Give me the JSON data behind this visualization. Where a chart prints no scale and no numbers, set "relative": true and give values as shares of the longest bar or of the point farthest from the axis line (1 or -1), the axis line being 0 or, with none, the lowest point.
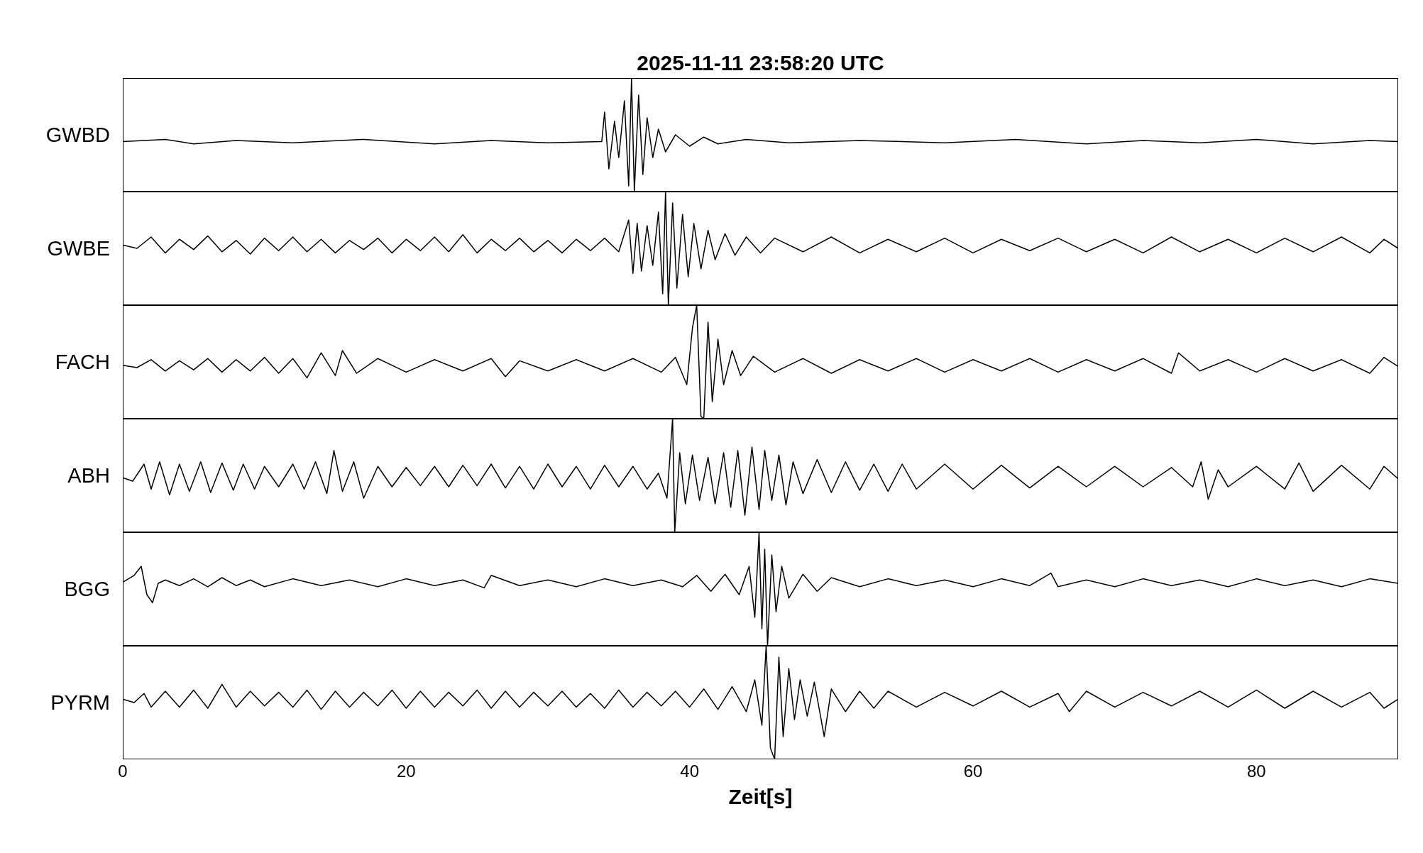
{
  "chart_data": [
    {
      "type": "line",
      "relative": true,
      "title": "2025-11-11  23:58:20 UTC",
      "ylabel": "GWBD",
      "color": "#000000",
      "xlim": [
        0,
        90
      ],
      "xticks": [
        0,
        20,
        40,
        60,
        80
      ],
      "tick_labels": false,
      "x": [
        0,
        3,
        5,
        8,
        12,
        17,
        22,
        26,
        30,
        33.8,
        34,
        34.3,
        34.7,
        35,
        35.4,
        35.7,
        35.9,
        36.1,
        36.4,
        36.7,
        37,
        37.4,
        37.8,
        38.3,
        39,
        40,
        41,
        42,
        44,
        47,
        52,
        58,
        63,
        68,
        72,
        76,
        80,
        84,
        88,
        90
      ],
      "values": [
        0.44,
        0.46,
        0.42,
        0.45,
        0.43,
        0.46,
        0.42,
        0.45,
        0.43,
        0.44,
        0.7,
        0.2,
        0.62,
        0.3,
        0.8,
        0.05,
        1,
        0,
        0.85,
        0.15,
        0.65,
        0.3,
        0.55,
        0.35,
        0.5,
        0.4,
        0.48,
        0.42,
        0.46,
        0.43,
        0.45,
        0.43,
        0.46,
        0.42,
        0.45,
        0.43,
        0.46,
        0.42,
        0.45,
        0.44
      ]
    },
    {
      "type": "line",
      "relative": true,
      "ylabel": "GWBE",
      "color": "#000000",
      "xlim": [
        0,
        90
      ],
      "xticks": [
        0,
        20,
        40,
        60,
        80
      ],
      "tick_labels": false,
      "x": [
        0,
        1,
        2,
        3,
        4,
        5,
        6,
        7,
        8,
        9,
        10,
        11,
        12,
        13,
        14,
        15,
        16,
        17,
        18,
        19,
        20,
        21,
        22,
        23,
        24,
        25,
        26,
        27,
        28,
        29,
        30,
        31,
        32,
        33,
        34,
        35,
        35.7,
        36,
        36.3,
        36.6,
        37,
        37.4,
        37.8,
        38.1,
        38.3,
        38.5,
        38.8,
        39.1,
        39.5,
        39.9,
        40.3,
        40.8,
        41.3,
        41.8,
        42.5,
        43.2,
        44,
        45,
        46,
        48,
        50,
        52,
        54,
        56,
        58,
        60,
        62,
        64,
        66,
        68,
        70,
        72,
        74,
        76,
        78,
        80,
        82,
        84,
        86,
        88,
        89,
        90
      ],
      "values": [
        0.53,
        0.5,
        0.6,
        0.46,
        0.58,
        0.49,
        0.61,
        0.47,
        0.57,
        0.45,
        0.59,
        0.48,
        0.6,
        0.47,
        0.58,
        0.46,
        0.57,
        0.49,
        0.59,
        0.46,
        0.58,
        0.48,
        0.6,
        0.47,
        0.62,
        0.46,
        0.58,
        0.48,
        0.59,
        0.47,
        0.57,
        0.46,
        0.58,
        0.48,
        0.59,
        0.47,
        0.75,
        0.28,
        0.72,
        0.3,
        0.7,
        0.35,
        0.82,
        0.1,
        1,
        0,
        0.9,
        0.15,
        0.8,
        0.25,
        0.72,
        0.32,
        0.66,
        0.4,
        0.63,
        0.44,
        0.6,
        0.46,
        0.59,
        0.47,
        0.6,
        0.46,
        0.58,
        0.47,
        0.59,
        0.46,
        0.58,
        0.48,
        0.59,
        0.47,
        0.58,
        0.46,
        0.6,
        0.47,
        0.58,
        0.46,
        0.59,
        0.47,
        0.6,
        0.46,
        0.58,
        0.5
      ]
    },
    {
      "type": "line",
      "relative": true,
      "ylabel": "FACH",
      "color": "#000000",
      "xlim": [
        0,
        90
      ],
      "xticks": [
        0,
        20,
        40,
        60,
        80
      ],
      "tick_labels": false,
      "x": [
        0,
        1,
        2,
        3,
        4,
        5,
        6,
        7,
        8,
        9,
        10,
        11,
        12,
        13,
        14,
        15,
        15.5,
        16.5,
        18,
        20,
        22,
        24,
        26,
        27,
        28,
        30,
        32,
        34,
        36,
        38,
        39,
        39.8,
        40.2,
        40.5,
        40.8,
        41,
        41.3,
        41.6,
        42,
        42.4,
        43,
        43.6,
        44.5,
        46,
        48,
        50,
        52,
        54,
        56,
        58,
        60,
        62,
        64,
        66,
        68,
        70,
        72,
        74,
        74.5,
        76,
        78,
        80,
        82,
        84,
        86,
        88,
        89,
        90
      ],
      "values": [
        0.47,
        0.45,
        0.52,
        0.42,
        0.51,
        0.43,
        0.53,
        0.41,
        0.52,
        0.42,
        0.54,
        0.4,
        0.53,
        0.36,
        0.58,
        0.38,
        0.6,
        0.4,
        0.53,
        0.41,
        0.52,
        0.42,
        0.53,
        0.37,
        0.51,
        0.42,
        0.52,
        0.42,
        0.53,
        0.41,
        0.54,
        0.3,
        0.8,
        1,
        0.02,
        0,
        0.85,
        0.15,
        0.7,
        0.3,
        0.6,
        0.38,
        0.55,
        0.41,
        0.53,
        0.4,
        0.52,
        0.42,
        0.53,
        0.41,
        0.52,
        0.42,
        0.53,
        0.41,
        0.52,
        0.42,
        0.53,
        0.4,
        0.58,
        0.42,
        0.52,
        0.41,
        0.53,
        0.42,
        0.52,
        0.4,
        0.54,
        0.46
      ]
    },
    {
      "type": "line",
      "relative": true,
      "ylabel": "ABH",
      "color": "#000000",
      "xlim": [
        0,
        90
      ],
      "xticks": [
        0,
        20,
        40,
        60,
        80
      ],
      "tick_labels": false,
      "x": [
        0,
        0.7,
        1.5,
        2,
        2.6,
        3.3,
        4,
        4.7,
        5.5,
        6.2,
        7,
        7.8,
        8.5,
        9.3,
        10,
        11,
        12,
        12.8,
        13.6,
        14.4,
        14.9,
        15.5,
        16.3,
        17,
        18,
        19,
        20,
        21,
        22,
        23,
        24,
        25,
        26,
        27,
        28,
        29,
        30,
        31,
        32,
        33,
        34,
        35,
        36,
        37,
        37.8,
        38.4,
        38.8,
        38.95,
        39.3,
        39.7,
        40.2,
        40.7,
        41.3,
        41.8,
        42.4,
        42.9,
        43.4,
        43.9,
        44.4,
        44.9,
        45.3,
        45.8,
        46.3,
        46.8,
        47.3,
        48,
        49,
        50,
        51,
        52,
        53,
        54,
        55,
        56,
        58,
        60,
        62,
        64,
        66,
        68,
        70,
        72,
        74,
        75.5,
        76.1,
        76.6,
        77.3,
        78,
        80,
        82,
        83,
        84,
        86,
        88,
        89,
        90
      ],
      "values": [
        0.48,
        0.45,
        0.6,
        0.38,
        0.62,
        0.33,
        0.6,
        0.36,
        0.62,
        0.35,
        0.61,
        0.37,
        0.6,
        0.38,
        0.58,
        0.4,
        0.6,
        0.38,
        0.62,
        0.34,
        0.72,
        0.36,
        0.62,
        0.3,
        0.58,
        0.4,
        0.57,
        0.41,
        0.58,
        0.4,
        0.59,
        0.41,
        0.6,
        0.39,
        0.58,
        0.38,
        0.6,
        0.4,
        0.58,
        0.38,
        0.59,
        0.4,
        0.58,
        0.38,
        0.52,
        0.3,
        1,
        0,
        0.7,
        0.25,
        0.68,
        0.28,
        0.66,
        0.25,
        0.7,
        0.22,
        0.72,
        0.15,
        0.75,
        0.2,
        0.72,
        0.28,
        0.68,
        0.24,
        0.62,
        0.34,
        0.64,
        0.35,
        0.62,
        0.37,
        0.6,
        0.36,
        0.6,
        0.38,
        0.6,
        0.38,
        0.59,
        0.39,
        0.58,
        0.4,
        0.58,
        0.4,
        0.57,
        0.4,
        0.62,
        0.29,
        0.55,
        0.4,
        0.58,
        0.38,
        0.61,
        0.36,
        0.59,
        0.38,
        0.58,
        0.47
      ]
    },
    {
      "type": "line",
      "relative": true,
      "ylabel": "BGG",
      "color": "#000000",
      "xlim": [
        0,
        90
      ],
      "xticks": [
        0,
        20,
        40,
        60,
        80
      ],
      "tick_labels": false,
      "x": [
        0,
        0.8,
        1.3,
        1.7,
        2.1,
        2.5,
        3,
        4,
        5,
        6,
        7,
        8,
        9,
        10,
        12,
        14,
        16,
        18,
        20,
        22,
        24,
        25.5,
        26,
        28,
        30,
        32,
        34,
        36,
        38,
        39.5,
        40.5,
        41.5,
        42.5,
        43.5,
        44.2,
        44.6,
        44.9,
        45.1,
        45.3,
        45.5,
        45.8,
        46.1,
        46.5,
        47,
        48,
        49,
        50,
        52,
        54,
        56,
        58,
        60,
        62,
        64,
        65.5,
        66,
        68,
        70,
        72,
        74,
        76,
        78,
        80,
        82,
        84,
        86,
        88,
        90
      ],
      "values": [
        0.56,
        0.62,
        0.7,
        0.45,
        0.38,
        0.55,
        0.58,
        0.53,
        0.59,
        0.52,
        0.6,
        0.53,
        0.58,
        0.52,
        0.59,
        0.53,
        0.58,
        0.52,
        0.59,
        0.53,
        0.58,
        0.51,
        0.62,
        0.53,
        0.58,
        0.52,
        0.59,
        0.53,
        0.58,
        0.52,
        0.62,
        0.48,
        0.63,
        0.45,
        0.7,
        0.25,
        1,
        0.15,
        0.85,
        0,
        0.8,
        0.3,
        0.7,
        0.42,
        0.63,
        0.48,
        0.6,
        0.52,
        0.59,
        0.53,
        0.58,
        0.52,
        0.59,
        0.53,
        0.64,
        0.52,
        0.58,
        0.52,
        0.59,
        0.53,
        0.58,
        0.52,
        0.59,
        0.53,
        0.58,
        0.52,
        0.59,
        0.55
      ]
    },
    {
      "type": "line",
      "relative": true,
      "ylabel": "PYRM",
      "xlabel": "Zeit[s]",
      "color": "#000000",
      "xlim": [
        0,
        90
      ],
      "xticks": [
        0,
        20,
        40,
        60,
        80
      ],
      "tick_labels": "x",
      "x": [
        0,
        0.8,
        1.5,
        2,
        3,
        4,
        5,
        6,
        7,
        8,
        9,
        10,
        11,
        12,
        13,
        14,
        15,
        16,
        17,
        18,
        19,
        20,
        21,
        22,
        23,
        24,
        25,
        26,
        27,
        28,
        29,
        30,
        31,
        32,
        33,
        34,
        35,
        36,
        37,
        38,
        39,
        40,
        41,
        42,
        43,
        44,
        44.6,
        45.1,
        45.4,
        45.7,
        46,
        46.3,
        46.6,
        47,
        47.4,
        47.8,
        48.3,
        48.8,
        49.5,
        50,
        51,
        52,
        53,
        54,
        56,
        58,
        60,
        62,
        64,
        66,
        66.8,
        68,
        70,
        72,
        74,
        76,
        78,
        80,
        82,
        84,
        86,
        88,
        89,
        90
      ],
      "values": [
        0.53,
        0.5,
        0.58,
        0.46,
        0.6,
        0.46,
        0.61,
        0.45,
        0.66,
        0.46,
        0.6,
        0.47,
        0.59,
        0.46,
        0.61,
        0.44,
        0.6,
        0.46,
        0.59,
        0.47,
        0.61,
        0.45,
        0.6,
        0.46,
        0.59,
        0.47,
        0.61,
        0.45,
        0.6,
        0.46,
        0.59,
        0.47,
        0.6,
        0.46,
        0.58,
        0.45,
        0.61,
        0.46,
        0.59,
        0.47,
        0.6,
        0.46,
        0.62,
        0.44,
        0.64,
        0.42,
        0.7,
        0.3,
        1,
        0.1,
        0,
        0.9,
        0.2,
        0.8,
        0.35,
        0.7,
        0.38,
        0.68,
        0.2,
        0.62,
        0.42,
        0.6,
        0.45,
        0.6,
        0.46,
        0.59,
        0.47,
        0.6,
        0.46,
        0.58,
        0.42,
        0.6,
        0.46,
        0.59,
        0.47,
        0.6,
        0.46,
        0.61,
        0.45,
        0.6,
        0.46,
        0.59,
        0.45,
        0.53
      ]
    }
  ]
}
